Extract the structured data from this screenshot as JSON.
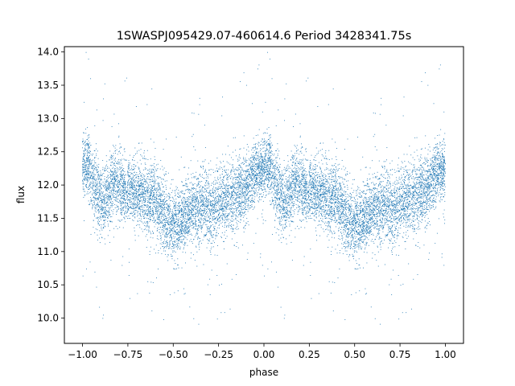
{
  "chart_data": {
    "type": "scatter",
    "title": "1SWASPJ095429.07-460614.6 Period 3428341.75s",
    "xlabel": "phase",
    "ylabel": "flux",
    "xlim": [
      -1.1,
      1.1
    ],
    "ylim": [
      9.62,
      14.08
    ],
    "x_ticks": [
      -1.0,
      -0.75,
      -0.5,
      -0.25,
      0.0,
      0.25,
      0.5,
      0.75,
      1.0
    ],
    "x_tick_labels": [
      "−1.00",
      "−0.75",
      "−0.50",
      "−0.25",
      "0.00",
      "0.25",
      "0.50",
      "0.75",
      "1.00"
    ],
    "y_ticks": [
      10.0,
      10.5,
      11.0,
      11.5,
      12.0,
      12.5,
      13.0,
      13.5,
      14.0
    ],
    "y_tick_labels": [
      "10.0",
      "10.5",
      "11.0",
      "11.5",
      "12.0",
      "12.5",
      "13.0",
      "13.5",
      "14.0"
    ],
    "grid": false,
    "legend": "none",
    "series": [
      {
        "color": "#1f77b4",
        "marker": "point",
        "mirrored": true,
        "phase_flux_profile": [
          {
            "phase": 0.0,
            "flux": 12.25,
            "spread": 0.3
          },
          {
            "phase": 0.03,
            "flux": 12.35,
            "spread": 0.35
          },
          {
            "phase": 0.06,
            "flux": 12.05,
            "spread": 0.35
          },
          {
            "phase": 0.09,
            "flux": 11.85,
            "spread": 0.35
          },
          {
            "phase": 0.12,
            "flux": 11.75,
            "spread": 0.35
          },
          {
            "phase": 0.15,
            "flux": 11.9,
            "spread": 0.35
          },
          {
            "phase": 0.18,
            "flux": 12.1,
            "spread": 0.35
          },
          {
            "phase": 0.21,
            "flux": 11.95,
            "spread": 0.3
          },
          {
            "phase": 0.24,
            "flux": 11.9,
            "spread": 0.3
          },
          {
            "phase": 0.27,
            "flux": 11.95,
            "spread": 0.3
          },
          {
            "phase": 0.3,
            "flux": 11.9,
            "spread": 0.35
          },
          {
            "phase": 0.33,
            "flux": 11.85,
            "spread": 0.35
          },
          {
            "phase": 0.36,
            "flux": 11.75,
            "spread": 0.35
          },
          {
            "phase": 0.39,
            "flux": 11.8,
            "spread": 0.35
          },
          {
            "phase": 0.42,
            "flux": 11.7,
            "spread": 0.35
          },
          {
            "phase": 0.45,
            "flux": 11.55,
            "spread": 0.35
          },
          {
            "phase": 0.48,
            "flux": 11.45,
            "spread": 0.35
          },
          {
            "phase": 0.51,
            "flux": 11.4,
            "spread": 0.35
          },
          {
            "phase": 0.54,
            "flux": 11.5,
            "spread": 0.35
          },
          {
            "phase": 0.57,
            "flux": 11.55,
            "spread": 0.35
          },
          {
            "phase": 0.6,
            "flux": 11.6,
            "spread": 0.35
          },
          {
            "phase": 0.63,
            "flux": 11.65,
            "spread": 0.35
          },
          {
            "phase": 0.66,
            "flux": 11.7,
            "spread": 0.35
          },
          {
            "phase": 0.69,
            "flux": 11.65,
            "spread": 0.35
          },
          {
            "phase": 0.72,
            "flux": 11.6,
            "spread": 0.35
          },
          {
            "phase": 0.75,
            "flux": 11.7,
            "spread": 0.35
          },
          {
            "phase": 0.78,
            "flux": 11.75,
            "spread": 0.35
          },
          {
            "phase": 0.81,
            "flux": 11.8,
            "spread": 0.35
          },
          {
            "phase": 0.84,
            "flux": 11.85,
            "spread": 0.35
          },
          {
            "phase": 0.87,
            "flux": 11.9,
            "spread": 0.35
          },
          {
            "phase": 0.9,
            "flux": 11.95,
            "spread": 0.35
          },
          {
            "phase": 0.93,
            "flux": 12.1,
            "spread": 0.35
          },
          {
            "phase": 0.96,
            "flux": 12.2,
            "spread": 0.3
          },
          {
            "phase": 1.0,
            "flux": 12.25,
            "spread": 0.3
          }
        ],
        "point_count": 6000
      }
    ]
  }
}
